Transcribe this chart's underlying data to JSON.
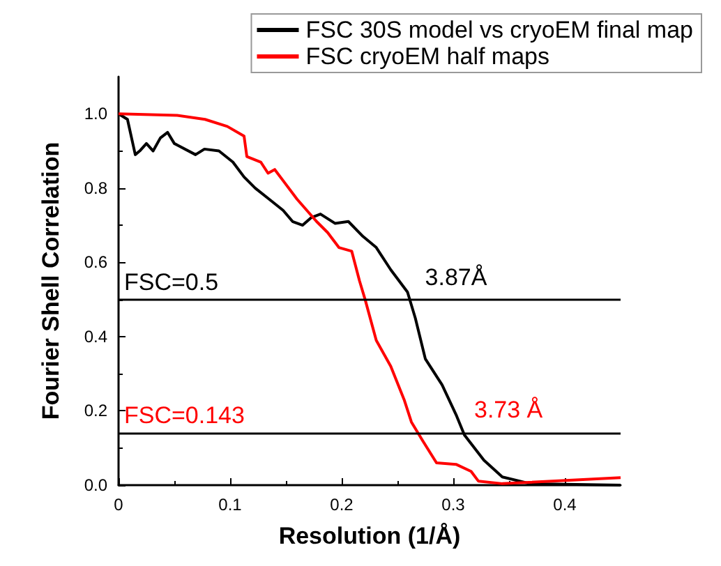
{
  "chart_data": {
    "type": "line",
    "xlabel": "Resolution (1/Å)",
    "ylabel": "Fourier Shell Correlation",
    "xlim": [
      0,
      0.45
    ],
    "xticks": [
      0,
      0.1,
      0.2,
      0.3,
      0.4
    ],
    "ylim": [
      0,
      1.1
    ],
    "yticks": [
      {
        "value": 0,
        "label": "0.0"
      },
      0.2,
      0.4,
      0.6,
      0.8,
      {
        "value": 1,
        "label": "1.0"
      }
    ],
    "grid": false,
    "legend": "top right",
    "marker": "none",
    "line_style": "solid",
    "series": [
      {
        "name": "FSC 30S model vs cryoEM final map",
        "color": "#000000",
        "x": [
          0,
          0.008,
          0.015,
          0.019,
          0.025,
          0.031,
          0.0375,
          0.044,
          0.05,
          0.069,
          0.077,
          0.09,
          0.1025,
          0.1125,
          0.1225,
          0.135,
          0.1475,
          0.156,
          0.165,
          0.1725,
          0.181,
          0.194,
          0.206,
          0.219,
          0.231,
          0.244,
          0.259,
          0.266,
          0.275,
          0.29,
          0.3025,
          0.31,
          0.3275,
          0.344,
          0.369,
          0.45
        ],
        "values": [
          1.0,
          0.985,
          0.89,
          0.9,
          0.92,
          0.9,
          0.935,
          0.95,
          0.92,
          0.89,
          0.905,
          0.9,
          0.87,
          0.83,
          0.8,
          0.77,
          0.74,
          0.71,
          0.7,
          0.72,
          0.73,
          0.705,
          0.71,
          0.67,
          0.64,
          0.58,
          0.52,
          0.45,
          0.34,
          0.27,
          0.19,
          0.135,
          0.067,
          0.022,
          0.004,
          0.0
        ]
      },
      {
        "name": "FSC cryoEM half maps",
        "color": "#ff0000",
        "x": [
          0,
          0.0525,
          0.0775,
          0.0975,
          0.1125,
          0.115,
          0.1275,
          0.134,
          0.14,
          0.1475,
          0.16,
          0.1775,
          0.1875,
          0.1975,
          0.209,
          0.216,
          0.221,
          0.231,
          0.244,
          0.256,
          0.2625,
          0.2725,
          0.285,
          0.3025,
          0.316,
          0.3225,
          0.344,
          0.45
        ],
        "values": [
          1.0,
          0.996,
          0.985,
          0.966,
          0.94,
          0.885,
          0.87,
          0.84,
          0.85,
          0.82,
          0.77,
          0.71,
          0.68,
          0.64,
          0.63,
          0.55,
          0.5,
          0.39,
          0.32,
          0.23,
          0.17,
          0.12,
          0.06,
          0.056,
          0.037,
          0.011,
          0.004,
          0.02
        ]
      }
    ],
    "ref_lines": [
      {
        "axis": "y",
        "value": 0.5,
        "label": "FSC=0.5",
        "color": "#000000"
      },
      {
        "axis": "y",
        "value": 0.143,
        "label": "FSC=0.143",
        "color": "#000000"
      }
    ],
    "annotations": [
      {
        "text": "3.87Å",
        "x": 0.266,
        "y": 0.5
      },
      {
        "text": "3.73 Å",
        "x": 0.31,
        "y": 0.143
      }
    ]
  }
}
